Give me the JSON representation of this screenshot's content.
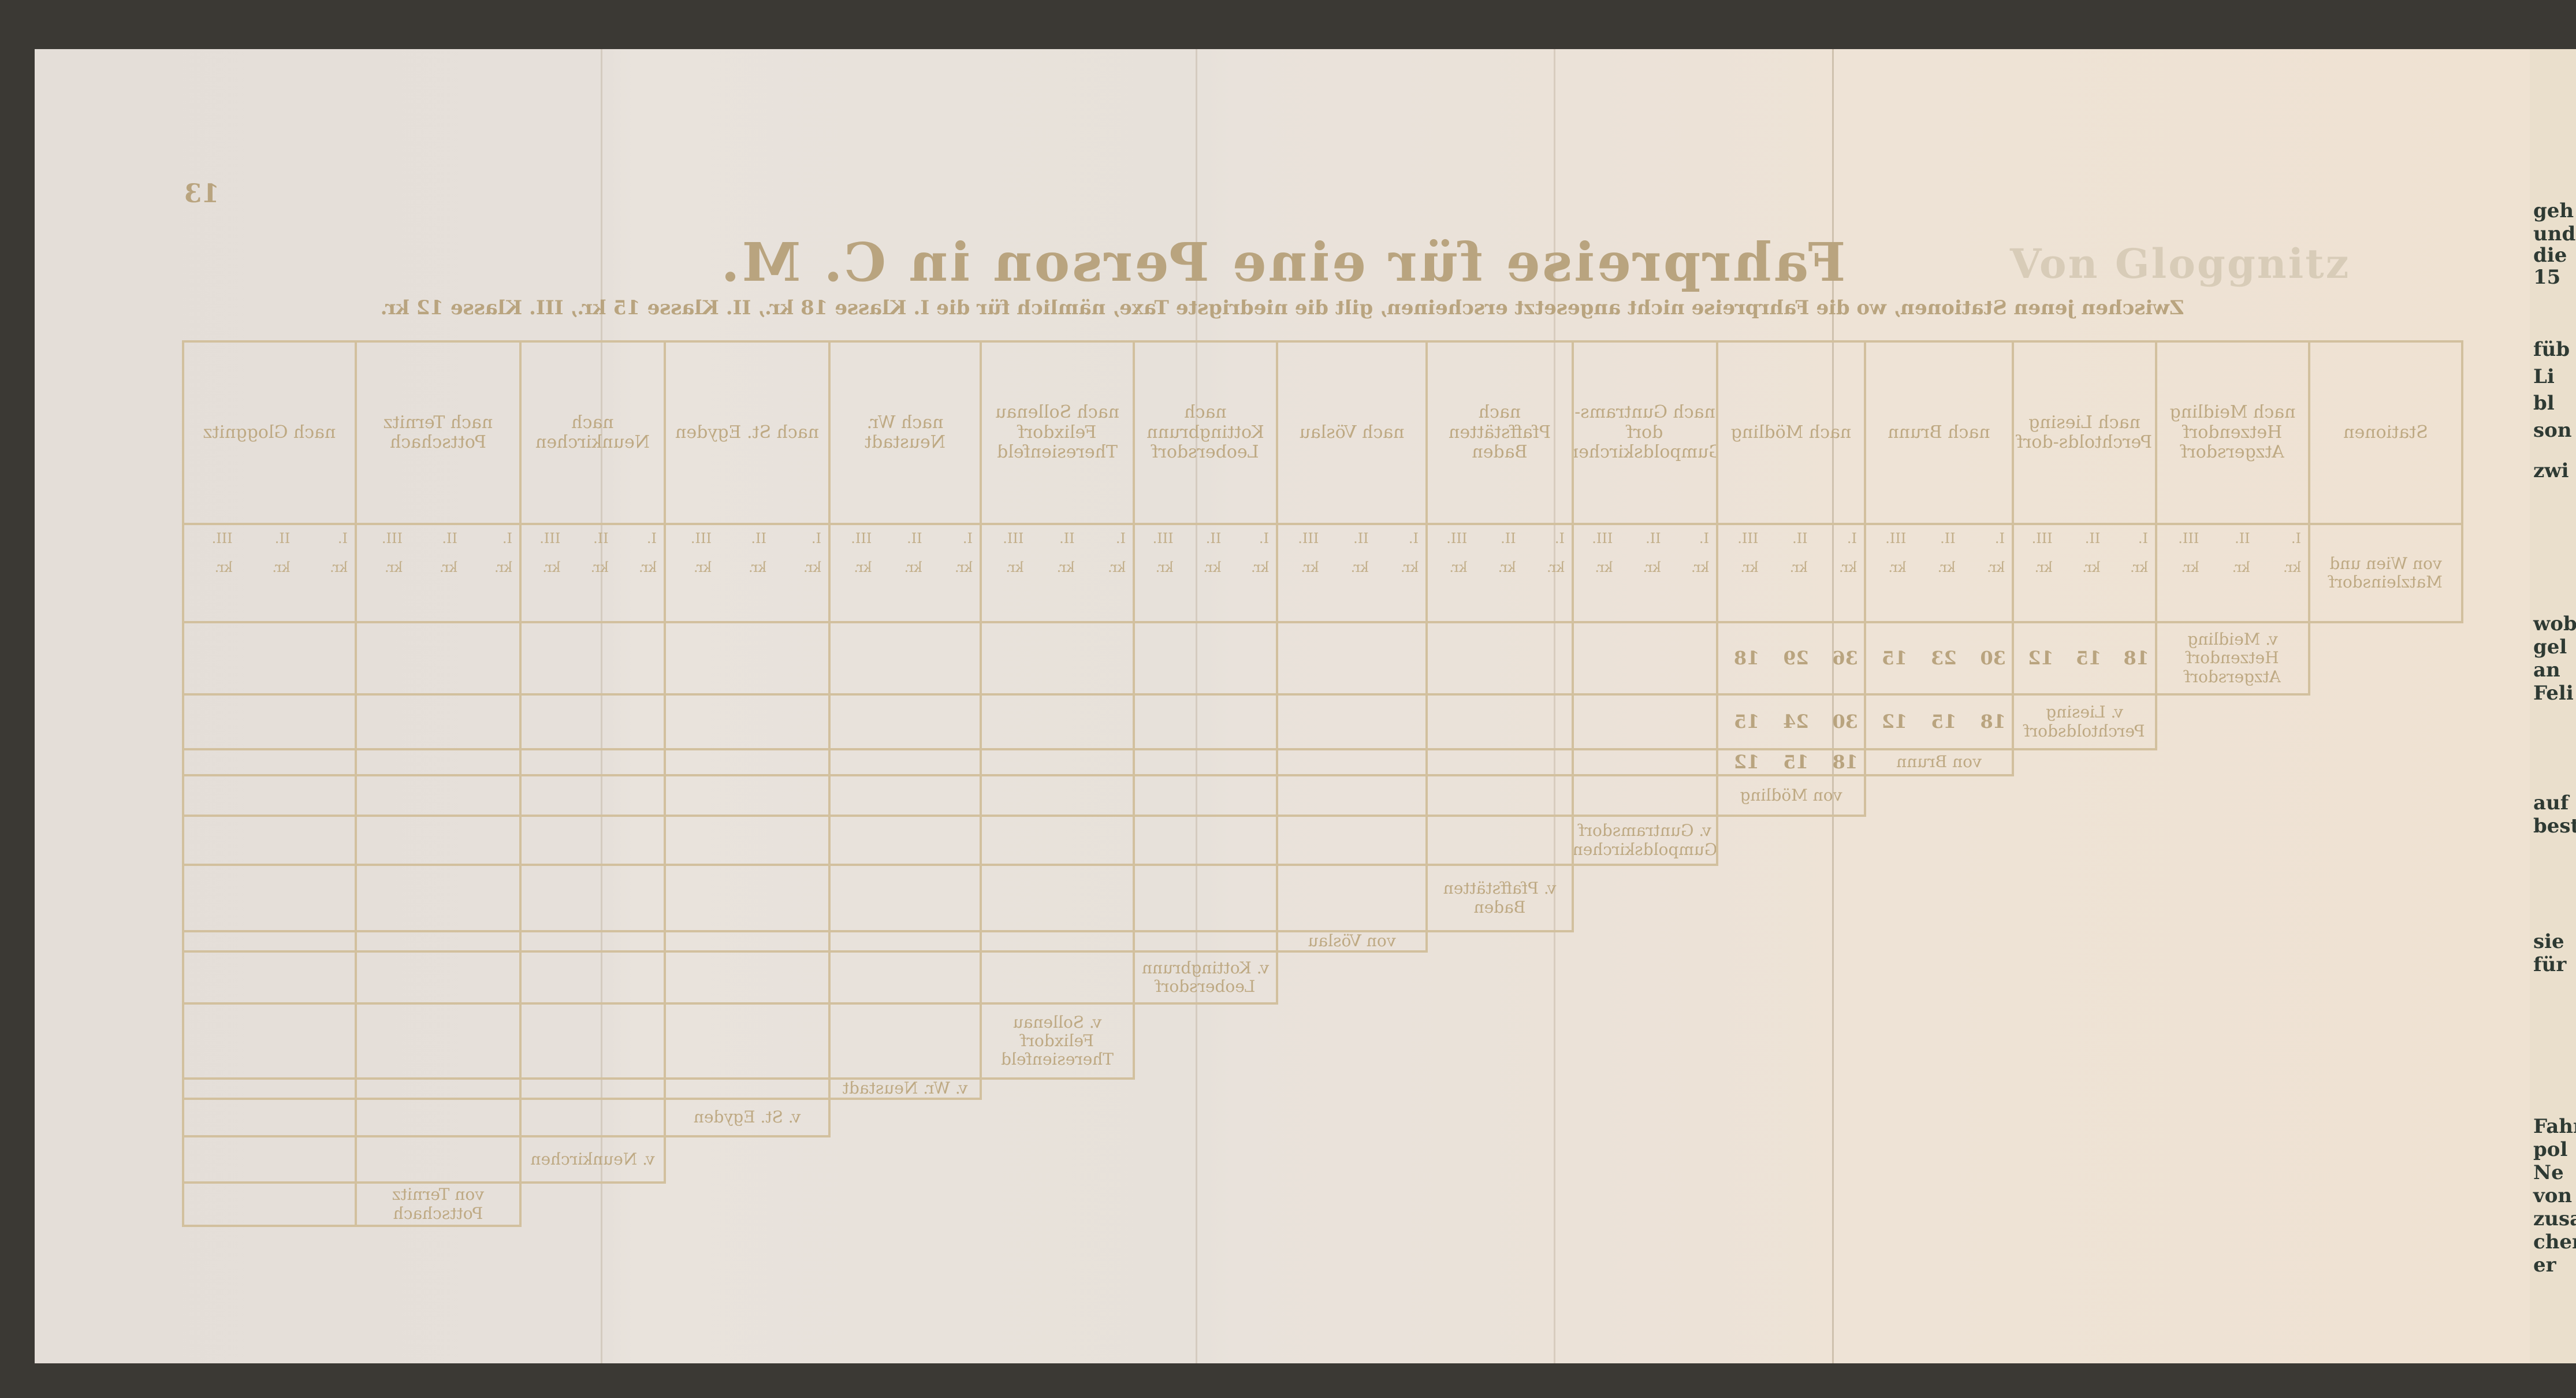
{
  "page": {
    "page_number": "13",
    "title": "Fahrpreise für eine Person in C. M.",
    "subtitle": "Zwischen jenen Stationen, wo die Fahrpreise nicht angesetzt erscheinen, gilt die niedrigste Taxe, nämlich für die I. Klasse 18 kr., II. Klasse 15 kr., III. Klasse 12 kr.",
    "behind_heading": "Von Gloggnitz"
  },
  "table": {
    "headers": [
      "Stationen",
      "nach Meidling Hetzendorf Atzgersdorf",
      "nach Liesing Perchtolds-dorf",
      "nach Brunn",
      "nach Mödling",
      "nach Guntrams-dorf Gumpoldskirchen",
      "nach Pfaffstätten Baden",
      "nach Vöslau",
      "nach Kottingbrunn Leobersdorf",
      "nach Sollenau Felixdorf Theresienfeld",
      "nach Wr. Neustadt",
      "nach St. Egyden",
      "nach Neunkirchen",
      "nach Ternitz Pottschach",
      "nach Gloggnitz"
    ],
    "class_labels": [
      "I.",
      "II.",
      "III."
    ],
    "unit_label": "kr.",
    "rows": [
      "von Wien und Matzleinsdorf",
      "v. Meidling Hetzendorf Atzgersdorf",
      "v. Liesing Perchtoldsdorf",
      "von Brunn",
      "von Mödling",
      "v. Guntramsdorf Gumpoldskirchen",
      "v. Pfaffstätten Baden",
      "von Vöslau",
      "v. Kottingbrunn Leobersdorf",
      "v. Sollenau Felixdorf Theresienfeld",
      "v. Wr. Neustadt",
      "v. St. Egyden",
      "v. Neunkirchen",
      "von Ternitz Pottschach"
    ],
    "sample_values": {
      "row_meidling": [
        "18",
        "15",
        "12",
        "30",
        "23",
        "15",
        "36",
        "29",
        "18"
      ],
      "row_liesing": [
        "18",
        "15",
        "12",
        "30",
        "24",
        "15"
      ],
      "row_brunn": [
        "18",
        "15",
        "12"
      ]
    }
  },
  "edge_text": [
    "geh",
    "und",
    "die",
    "15",
    "füb",
    "Li",
    "bl",
    "son",
    "zwi",
    "wob",
    "gel",
    "an",
    "Feli",
    "auf",
    "best",
    "sie",
    "für",
    "Fahr",
    "pol",
    "Ne",
    "von",
    "zusa",
    "chers",
    "er"
  ]
}
